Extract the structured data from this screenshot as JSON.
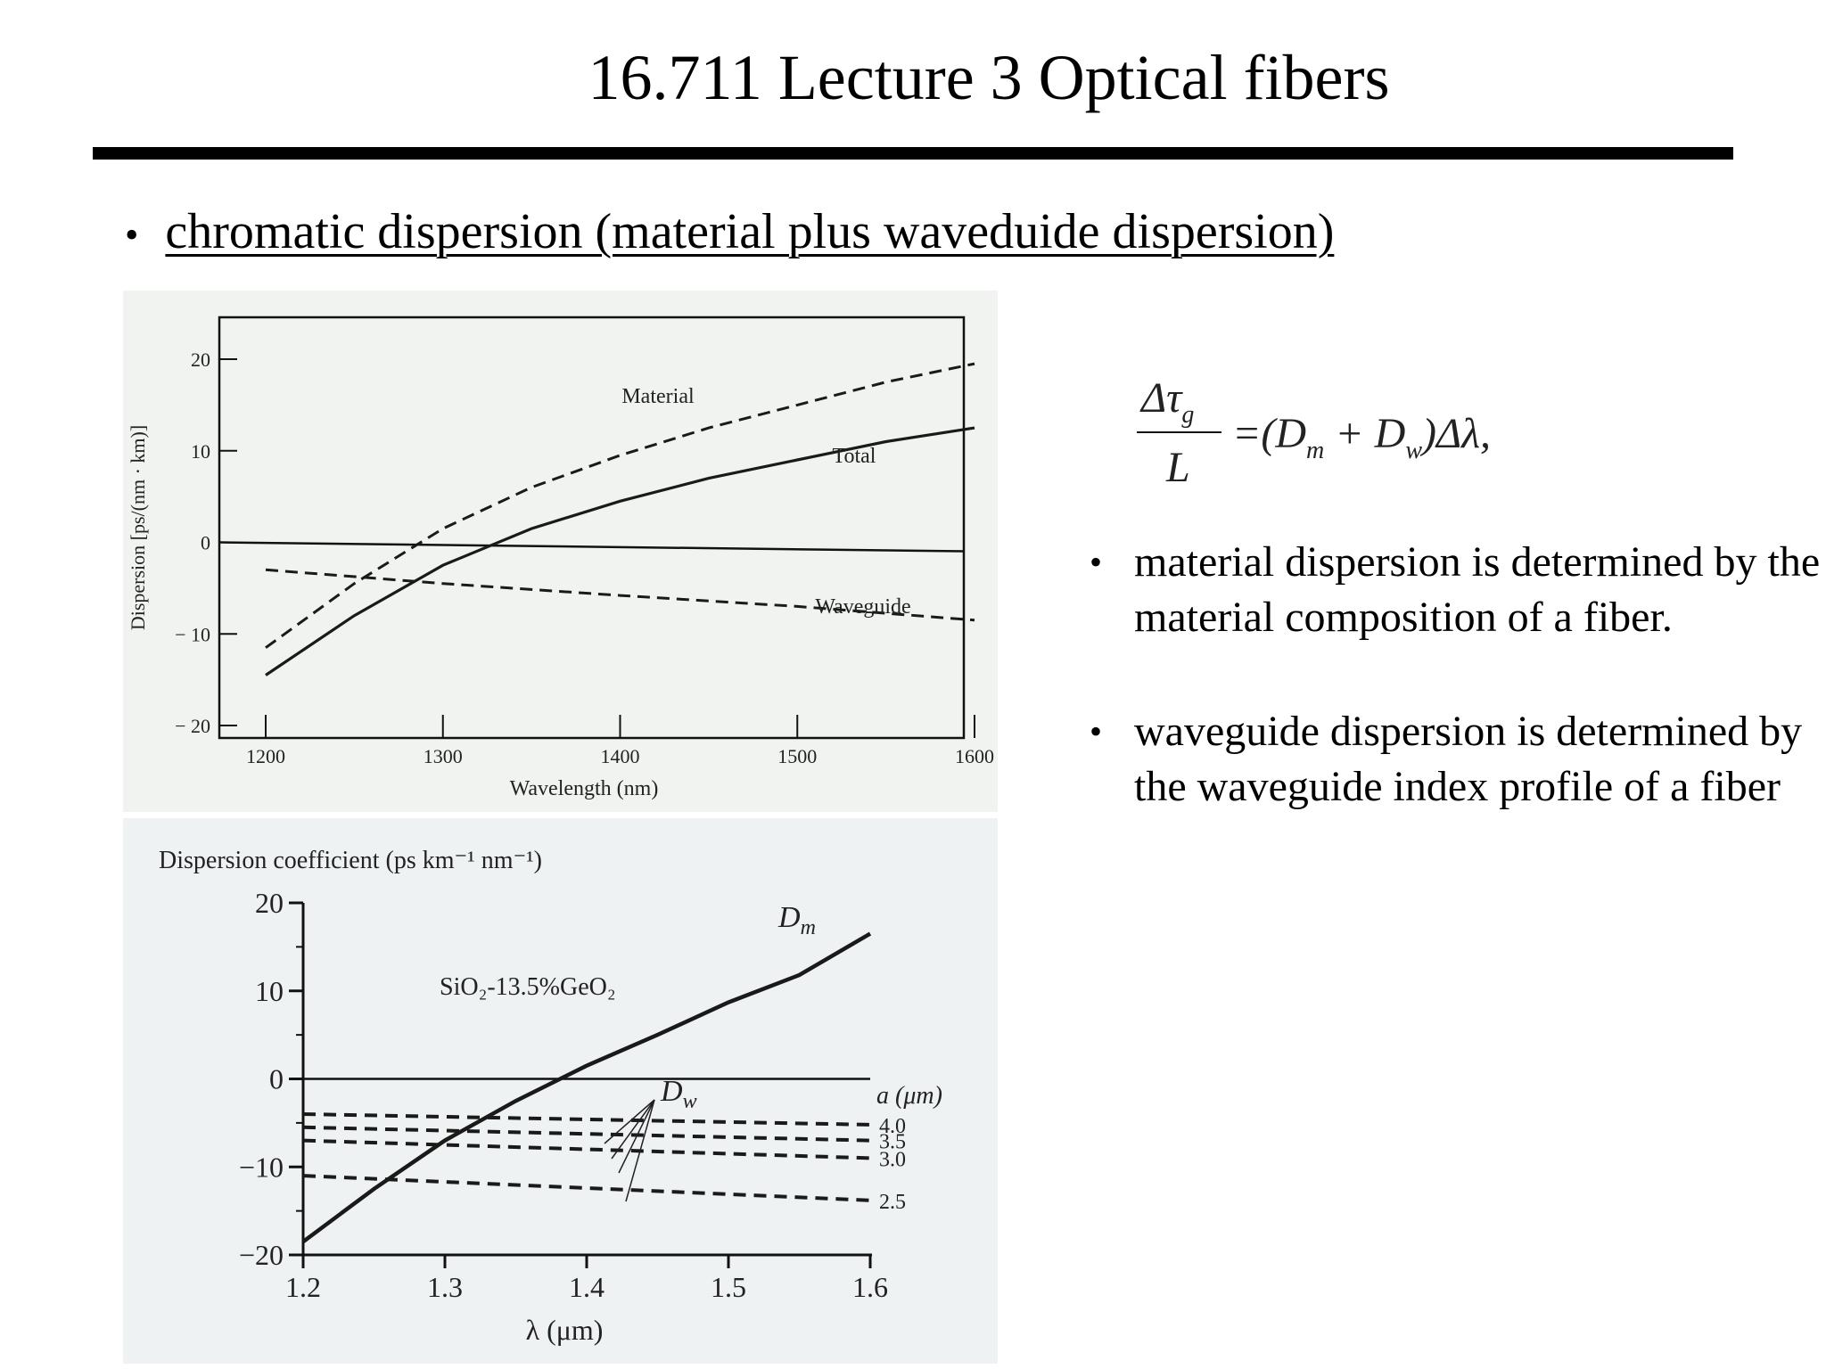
{
  "slide": {
    "title": "16.711 Lecture 3 Optical fibers",
    "main_bullet": "chromatic dispersion (material plus waveduide dispersion)",
    "side_bullets": [
      "material dispersion is determined by the material composition of a fiber.",
      "waveguide dispersion is determined by the waveguide index profile of a fiber"
    ],
    "equation": {
      "numerator": "Δτ",
      "numerator_sub": "g",
      "denominator": "L",
      "rhs_open": "=(D",
      "sub_m": "m",
      "plus": " + D",
      "sub_w": "w",
      "rhs_close": ")Δλ,"
    }
  },
  "chart_data": [
    {
      "type": "line",
      "xlabel": "Wavelength (nm)",
      "ylabel": "Dispersion [ps/(nm · km)]",
      "xlim": [
        1200,
        1600
      ],
      "ylim": [
        -20,
        20
      ],
      "x_ticks": [
        1200,
        1300,
        1400,
        1500,
        1600
      ],
      "y_ticks": [
        20,
        10,
        0,
        -10,
        -20
      ],
      "y_tick_labels": [
        "20",
        "10",
        "0",
        "− 10",
        "− 20"
      ],
      "grid": false,
      "series": [
        {
          "name": "Material",
          "style": "dashed",
          "x": [
            1200,
            1250,
            1300,
            1350,
            1400,
            1450,
            1500,
            1550,
            1600
          ],
          "y": [
            -11.5,
            -4.5,
            1.5,
            6.0,
            9.5,
            12.5,
            15.0,
            17.5,
            19.5
          ]
        },
        {
          "name": "Total",
          "style": "solid",
          "x": [
            1200,
            1250,
            1300,
            1350,
            1400,
            1450,
            1500,
            1550,
            1600
          ],
          "y": [
            -14.5,
            -8.0,
            -2.5,
            1.5,
            4.5,
            7.0,
            9.0,
            11.0,
            12.5
          ]
        },
        {
          "name": "Waveguide",
          "style": "dashed",
          "x": [
            1200,
            1300,
            1400,
            1500,
            1600
          ],
          "y": [
            -3.0,
            -4.5,
            -5.8,
            -7.0,
            -8.5
          ]
        }
      ]
    },
    {
      "type": "line",
      "title": "Dispersion coefficient (ps km⁻¹ nm⁻¹)",
      "xlabel": "λ  (μm)",
      "xlim": [
        1.2,
        1.6
      ],
      "ylim": [
        -20,
        20
      ],
      "x_ticks": [
        1.2,
        1.3,
        1.4,
        1.5,
        1.6
      ],
      "y_ticks": [
        20,
        10,
        0,
        -10,
        -20
      ],
      "y_tick_labels": [
        "20",
        "10",
        "0",
        "−10",
        "−20"
      ],
      "grid": false,
      "annotation": "SiO₂-13.5%GeO₂",
      "legend_title": "a (μm)",
      "series": [
        {
          "name": "Dm",
          "label_main": "D",
          "label_sub": "m",
          "style": "solid",
          "x": [
            1.2,
            1.25,
            1.3,
            1.35,
            1.4,
            1.45,
            1.5,
            1.55,
            1.6
          ],
          "y": [
            -18.5,
            -12.5,
            -7.0,
            -2.5,
            1.5,
            5.0,
            8.7,
            11.8,
            16.5
          ]
        },
        {
          "name": "4.0",
          "style": "dashed",
          "x": [
            1.2,
            1.6
          ],
          "y": [
            -4.0,
            -5.2
          ]
        },
        {
          "name": "3.5",
          "style": "dashed",
          "x": [
            1.2,
            1.6
          ],
          "y": [
            -5.5,
            -7.0
          ]
        },
        {
          "name": "3.0",
          "style": "dashed",
          "x": [
            1.2,
            1.6
          ],
          "y": [
            -7.0,
            -9.0
          ]
        },
        {
          "name": "2.5",
          "style": "dashed",
          "x": [
            1.2,
            1.6
          ],
          "y": [
            -11.0,
            -13.8
          ]
        }
      ],
      "dw_label_main": "D",
      "dw_label_sub": "w"
    }
  ]
}
